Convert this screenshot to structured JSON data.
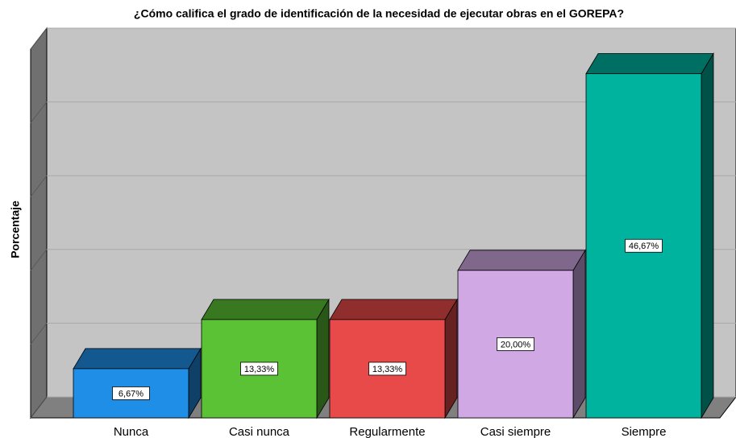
{
  "chart_data": {
    "type": "bar3d",
    "title": "¿Cómo califica el grado de identificación de la necesidad de ejecutar obras  en el GOREPA?",
    "ylabel": "Porcentaje",
    "categories": [
      "Nunca",
      "Casi nunca",
      "Regularmente",
      "Casi siempre",
      "Siempre"
    ],
    "values": [
      6.67,
      13.33,
      13.33,
      20.0,
      46.67
    ],
    "value_labels": [
      "6,67%",
      "13,33%",
      "13,33%",
      "20,00%",
      "46,67%"
    ],
    "colors": [
      "#1f8ee6",
      "#5bc236",
      "#e84a4a",
      "#cfa8e4",
      "#00b39f"
    ],
    "ylim": [
      0,
      50
    ],
    "yticks": [
      0,
      10,
      20,
      30,
      40,
      50
    ],
    "grid": true
  }
}
